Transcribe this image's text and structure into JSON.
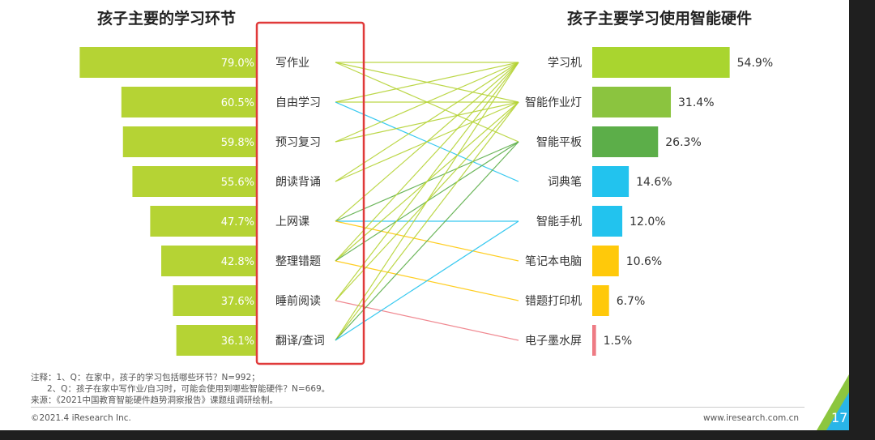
{
  "left_title": "孩子主要的学习环节",
  "right_title": "孩子主要学习使用智能硬件",
  "chart_data": [
    {
      "type": "bar",
      "title": "孩子主要的学习环节",
      "orientation": "horizontal",
      "categories": [
        "写作业",
        "自由学习",
        "预习复习",
        "朗读背诵",
        "上网课",
        "整理错题",
        "睡前阅读",
        "翻译/查词"
      ],
      "values": [
        79.0,
        60.5,
        59.8,
        55.6,
        47.7,
        42.8,
        37.6,
        36.1
      ],
      "value_labels": [
        "79.0%",
        "60.5%",
        "59.8%",
        "55.6%",
        "47.7%",
        "42.8%",
        "37.6%",
        "36.1%"
      ],
      "unit": "%",
      "bar_color": "#b5d334",
      "highlight_box_color": "#e03a3a"
    },
    {
      "type": "bar",
      "title": "孩子主要学习使用智能硬件",
      "orientation": "horizontal",
      "categories": [
        "学习机",
        "智能作业灯",
        "智能平板",
        "词典笔",
        "智能手机",
        "笔记本电脑",
        "错题打印机",
        "电子墨水屏"
      ],
      "values": [
        54.9,
        31.4,
        26.3,
        14.6,
        12.0,
        10.6,
        6.7,
        1.5
      ],
      "value_labels": [
        "54.9%",
        "31.4%",
        "26.3%",
        "14.6%",
        "12.0%",
        "10.6%",
        "6.7%",
        "1.5%"
      ],
      "unit": "%",
      "bar_colors": [
        "#a9d52f",
        "#8bc43f",
        "#5cae49",
        "#22c3ee",
        "#22c3ee",
        "#ffc90a",
        "#ffc90a",
        "#ee7b84"
      ]
    },
    {
      "type": "diagram",
      "description_of_links": "connecting lines between learning activities and devices",
      "links": [
        {
          "from": "写作业",
          "to": "学习机",
          "color": "#b5d334"
        },
        {
          "from": "写作业",
          "to": "智能作业灯",
          "color": "#b5d334"
        },
        {
          "from": "写作业",
          "to": "智能平板",
          "color": "#b5d334"
        },
        {
          "from": "自由学习",
          "to": "学习机",
          "color": "#b5d334"
        },
        {
          "from": "自由学习",
          "to": "智能作业灯",
          "color": "#b5d334"
        },
        {
          "from": "自由学习",
          "to": "词典笔",
          "color": "#22c3ee"
        },
        {
          "from": "预习复习",
          "to": "学习机",
          "color": "#b5d334"
        },
        {
          "from": "预习复习",
          "to": "智能作业灯",
          "color": "#b5d334"
        },
        {
          "from": "朗读背诵",
          "to": "学习机",
          "color": "#b5d334"
        },
        {
          "from": "朗读背诵",
          "to": "智能作业灯",
          "color": "#b5d334"
        },
        {
          "from": "上网课",
          "to": "学习机",
          "color": "#b5d334"
        },
        {
          "from": "上网课",
          "to": "智能平板",
          "color": "#5cae49"
        },
        {
          "from": "上网课",
          "to": "智能手机",
          "color": "#22c3ee"
        },
        {
          "from": "上网课",
          "to": "笔记本电脑",
          "color": "#ffc90a"
        },
        {
          "from": "整理错题",
          "to": "学习机",
          "color": "#b5d334"
        },
        {
          "from": "整理错题",
          "to": "智能作业灯",
          "color": "#b5d334"
        },
        {
          "from": "整理错题",
          "to": "智能平板",
          "color": "#5cae49"
        },
        {
          "from": "整理错题",
          "to": "错题打印机",
          "color": "#ffc90a"
        },
        {
          "from": "睡前阅读",
          "to": "学习机",
          "color": "#b5d334"
        },
        {
          "from": "睡前阅读",
          "to": "智能作业灯",
          "color": "#b5d334"
        },
        {
          "from": "睡前阅读",
          "to": "电子墨水屏",
          "color": "#ee7b84"
        },
        {
          "from": "翻译/查词",
          "to": "学习机",
          "color": "#b5d334"
        },
        {
          "from": "翻译/查词",
          "to": "智能作业灯",
          "color": "#b5d334"
        },
        {
          "from": "翻译/查词",
          "to": "智能平板",
          "color": "#5cae49"
        },
        {
          "from": "翻译/查词",
          "to": "智能手机",
          "color": "#22c3ee"
        }
      ]
    }
  ],
  "notes": {
    "line1": "注释：1、Q：在家中，孩子的学习包括哪些环节？N=992；",
    "line2": "2、Q：孩子在家中写作业/自习时，可能会使用到哪些智能硬件？N=669。",
    "source": "来源：《2021中国教育智能硬件趋势洞察报告》课题组调研绘制。"
  },
  "footer": {
    "copyright": "©2021.4 iResearch Inc.",
    "site": "www.iresearch.com.cn",
    "page": "17"
  }
}
